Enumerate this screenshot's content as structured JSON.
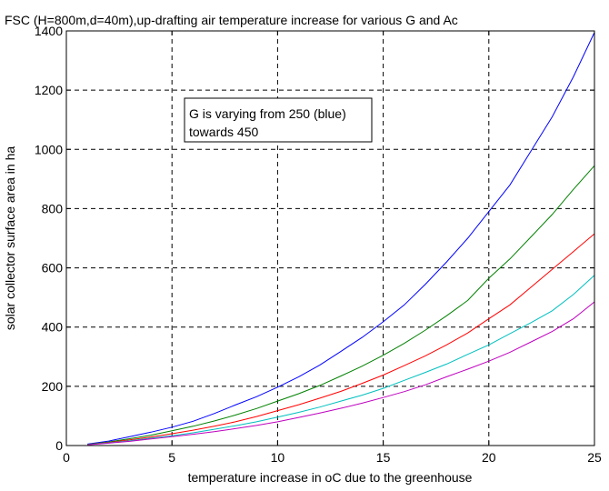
{
  "chart_data": {
    "type": "line",
    "title": "FSC (H=800m,d=40m),up-drafting air temperature increase for various G and Ac",
    "xlabel": "temperature increase in oC due to the greenhouse",
    "ylabel": "solar collector surface area in ha",
    "xlim": [
      0,
      25
    ],
    "ylim": [
      0,
      1400
    ],
    "xticks": [
      0,
      5,
      10,
      15,
      20,
      25
    ],
    "yticks": [
      0,
      200,
      400,
      600,
      800,
      1000,
      1200,
      1400
    ],
    "grid": true,
    "annotation": [
      "G is varying from 250 (blue)",
      "towards 450"
    ],
    "x": [
      1,
      2,
      3,
      4,
      5,
      6,
      7,
      8,
      9,
      10,
      11,
      12,
      13,
      14,
      15,
      16,
      17,
      18,
      19,
      20,
      21,
      22,
      23,
      24,
      25
    ],
    "series": [
      {
        "color": "#0000ff",
        "values": [
          5,
          15,
          30,
          45,
          62,
          82,
          108,
          137,
          165,
          197,
          232,
          272,
          318,
          365,
          418,
          475,
          545,
          620,
          700,
          790,
          880,
          995,
          1110,
          1245,
          1395
        ]
      },
      {
        "color": "#008000",
        "values": [
          4,
          12,
          23,
          35,
          50,
          65,
          83,
          103,
          125,
          150,
          175,
          203,
          235,
          268,
          305,
          345,
          390,
          438,
          490,
          565,
          630,
          705,
          780,
          865,
          945
        ]
      },
      {
        "color": "#ff0000",
        "values": [
          3,
          10,
          19,
          29,
          40,
          52,
          65,
          80,
          98,
          118,
          138,
          160,
          183,
          210,
          238,
          270,
          303,
          340,
          380,
          428,
          475,
          535,
          595,
          655,
          715
        ]
      },
      {
        "color": "#00bfbf",
        "values": [
          3,
          9,
          16,
          25,
          33,
          43,
          55,
          67,
          80,
          96,
          112,
          130,
          150,
          170,
          193,
          220,
          247,
          275,
          308,
          340,
          378,
          415,
          455,
          510,
          575
        ]
      },
      {
        "color": "#bf00bf",
        "values": [
          2,
          8,
          14,
          22,
          30,
          38,
          47,
          57,
          68,
          80,
          95,
          110,
          126,
          143,
          162,
          182,
          205,
          232,
          258,
          285,
          315,
          350,
          385,
          428,
          485
        ]
      }
    ]
  }
}
